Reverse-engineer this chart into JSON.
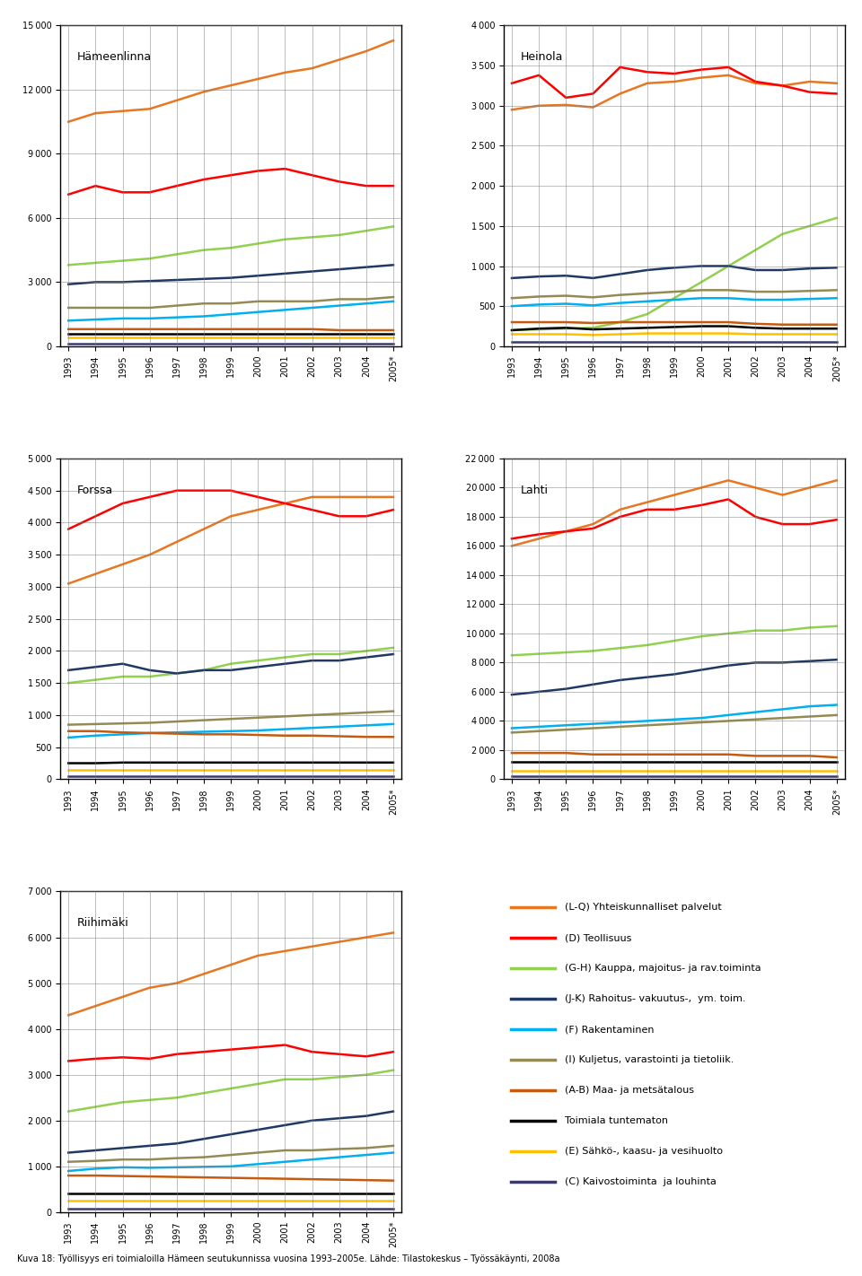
{
  "years": [
    1993,
    1994,
    1995,
    1996,
    1997,
    1998,
    1999,
    2000,
    2001,
    2002,
    2003,
    2004,
    "2005*"
  ],
  "years_numeric": [
    1993,
    1994,
    1995,
    1996,
    1997,
    1998,
    1999,
    2000,
    2001,
    2002,
    2003,
    2004,
    2005
  ],
  "colors": {
    "LQ": "#E87722",
    "D": "#FF0000",
    "GH": "#92D050",
    "JK": "#1F3864",
    "F": "#00B0F0",
    "I": "#948A54",
    "AB": "#C55A11",
    "unknown": "#000000",
    "E": "#FFC000",
    "C": "#3B3B6B"
  },
  "legend_labels": [
    "(L-Q) Yhteiskunnalliset palvelut",
    "(D) Teollisuus",
    "(G-H) Kauppa, majoitus- ja rav.toiminta",
    "(J-K) Rahoitus- vakuutus-,  ym. toim.",
    "(F) Rakentaminen",
    "(I) Kuljetus, varastointi ja tietoliik.",
    "(A-B) Maa- ja metsätalous",
    "Toimiala tuntematon",
    "(E) Sähkö-, kaasu- ja vesihuolto",
    "(C) Kaivostoiminta  ja louhinta"
  ],
  "hameenlinna": {
    "title": "Hämeenlinna",
    "ylim": [
      0,
      15000
    ],
    "yticks": [
      0,
      3000,
      6000,
      9000,
      12000,
      15000
    ],
    "LQ": [
      10500,
      10900,
      11000,
      11100,
      11500,
      11900,
      12200,
      12500,
      12800,
      13000,
      13400,
      13800,
      14300
    ],
    "D": [
      7100,
      7500,
      7200,
      7200,
      7500,
      7800,
      8000,
      8200,
      8300,
      8000,
      7700,
      7500,
      7500
    ],
    "GH": [
      3800,
      3900,
      4000,
      4100,
      4300,
      4500,
      4600,
      4800,
      5000,
      5100,
      5200,
      5400,
      5600
    ],
    "JK": [
      2900,
      3000,
      3000,
      3050,
      3100,
      3150,
      3200,
      3300,
      3400,
      3500,
      3600,
      3700,
      3800
    ],
    "F": [
      1200,
      1250,
      1300,
      1300,
      1350,
      1400,
      1500,
      1600,
      1700,
      1800,
      1900,
      2000,
      2100
    ],
    "I": [
      1800,
      1800,
      1800,
      1800,
      1900,
      2000,
      2000,
      2100,
      2100,
      2100,
      2200,
      2200,
      2300
    ],
    "AB": [
      800,
      800,
      800,
      800,
      800,
      800,
      800,
      800,
      800,
      800,
      750,
      750,
      750
    ],
    "unknown": [
      600,
      600,
      600,
      600,
      600,
      600,
      600,
      600,
      600,
      600,
      600,
      600,
      600
    ],
    "E": [
      400,
      400,
      400,
      400,
      400,
      400,
      400,
      400,
      400,
      400,
      400,
      400,
      400
    ],
    "C": [
      100,
      100,
      100,
      100,
      100,
      100,
      100,
      100,
      100,
      100,
      100,
      100,
      100
    ]
  },
  "heinola": {
    "title": "Heinola",
    "ylim": [
      0,
      4000
    ],
    "yticks": [
      0,
      500,
      1000,
      1500,
      2000,
      2500,
      3000,
      3500,
      4000
    ],
    "LQ": [
      2950,
      3000,
      3010,
      2980,
      3150,
      3280,
      3300,
      3350,
      3380,
      3280,
      3250,
      3300,
      3280
    ],
    "D": [
      3280,
      3380,
      3100,
      3150,
      3480,
      3420,
      3400,
      3450,
      3480,
      3300,
      3250,
      3170,
      3150
    ],
    "GH": [
      200,
      210,
      220,
      230,
      300,
      400,
      600,
      800,
      1000,
      1200,
      1400,
      1500,
      1600
    ],
    "JK": [
      850,
      870,
      880,
      850,
      900,
      950,
      980,
      1000,
      1000,
      950,
      950,
      970,
      980
    ],
    "F": [
      500,
      520,
      530,
      510,
      540,
      560,
      580,
      600,
      600,
      580,
      580,
      590,
      600
    ],
    "I": [
      600,
      620,
      630,
      610,
      640,
      660,
      680,
      700,
      700,
      680,
      680,
      690,
      700
    ],
    "AB": [
      300,
      300,
      300,
      290,
      300,
      300,
      300,
      300,
      300,
      280,
      270,
      270,
      270
    ],
    "unknown": [
      200,
      220,
      230,
      210,
      220,
      230,
      240,
      250,
      250,
      230,
      220,
      220,
      220
    ],
    "E": [
      150,
      150,
      150,
      140,
      150,
      160,
      160,
      160,
      160,
      150,
      150,
      150,
      150
    ],
    "C": [
      50,
      50,
      50,
      50,
      50,
      50,
      50,
      50,
      50,
      50,
      50,
      50,
      50
    ]
  },
  "forssa": {
    "title": "Forssa",
    "ylim": [
      0,
      5000
    ],
    "yticks": [
      0,
      500,
      1000,
      1500,
      2000,
      2500,
      3000,
      3500,
      4000,
      4500,
      5000
    ],
    "LQ": [
      3050,
      3200,
      3350,
      3500,
      3700,
      3900,
      4100,
      4200,
      4300,
      4400,
      4400,
      4400,
      4400
    ],
    "D": [
      3900,
      4100,
      4300,
      4400,
      4500,
      4500,
      4500,
      4400,
      4300,
      4200,
      4100,
      4100,
      4200
    ],
    "GH": [
      1500,
      1550,
      1600,
      1600,
      1650,
      1700,
      1800,
      1850,
      1900,
      1950,
      1950,
      2000,
      2050
    ],
    "JK": [
      1700,
      1750,
      1800,
      1700,
      1650,
      1700,
      1700,
      1750,
      1800,
      1850,
      1850,
      1900,
      1950
    ],
    "F": [
      650,
      680,
      700,
      720,
      730,
      740,
      750,
      760,
      780,
      800,
      820,
      840,
      860
    ],
    "I": [
      850,
      860,
      870,
      880,
      900,
      920,
      940,
      960,
      980,
      1000,
      1020,
      1040,
      1060
    ],
    "AB": [
      750,
      750,
      730,
      720,
      710,
      700,
      700,
      690,
      680,
      680,
      670,
      660,
      660
    ],
    "unknown": [
      250,
      250,
      260,
      260,
      260,
      260,
      260,
      260,
      260,
      260,
      260,
      260,
      260
    ],
    "E": [
      150,
      150,
      150,
      150,
      150,
      150,
      150,
      150,
      150,
      150,
      150,
      150,
      150
    ],
    "C": [
      50,
      50,
      50,
      50,
      50,
      50,
      50,
      50,
      50,
      50,
      50,
      50,
      50
    ]
  },
  "lahti": {
    "title": "Lahti",
    "ylim": [
      0,
      22000
    ],
    "yticks": [
      0,
      2000,
      4000,
      6000,
      8000,
      10000,
      12000,
      14000,
      16000,
      18000,
      20000,
      22000
    ],
    "LQ": [
      16000,
      16500,
      17000,
      17500,
      18500,
      19000,
      19500,
      20000,
      20500,
      20000,
      19500,
      20000,
      20500
    ],
    "D": [
      16500,
      16800,
      17000,
      17200,
      18000,
      18500,
      18500,
      18800,
      19200,
      18000,
      17500,
      17500,
      17800
    ],
    "GH": [
      8500,
      8600,
      8700,
      8800,
      9000,
      9200,
      9500,
      9800,
      10000,
      10200,
      10200,
      10400,
      10500
    ],
    "JK": [
      5800,
      6000,
      6200,
      6500,
      6800,
      7000,
      7200,
      7500,
      7800,
      8000,
      8000,
      8100,
      8200
    ],
    "F": [
      3500,
      3600,
      3700,
      3800,
      3900,
      4000,
      4100,
      4200,
      4400,
      4600,
      4800,
      5000,
      5100
    ],
    "I": [
      3200,
      3300,
      3400,
      3500,
      3600,
      3700,
      3800,
      3900,
      4000,
      4100,
      4200,
      4300,
      4400
    ],
    "AB": [
      1800,
      1800,
      1800,
      1700,
      1700,
      1700,
      1700,
      1700,
      1700,
      1600,
      1600,
      1600,
      1500
    ],
    "unknown": [
      1200,
      1200,
      1200,
      1200,
      1200,
      1200,
      1200,
      1200,
      1200,
      1200,
      1200,
      1200,
      1200
    ],
    "E": [
      600,
      600,
      600,
      600,
      600,
      600,
      600,
      600,
      600,
      600,
      600,
      600,
      600
    ],
    "C": [
      200,
      200,
      200,
      200,
      200,
      200,
      200,
      200,
      200,
      200,
      200,
      200,
      200
    ]
  },
  "riihimaki": {
    "title": "Riihimäki",
    "ylim": [
      0,
      7000
    ],
    "yticks": [
      0,
      1000,
      2000,
      3000,
      4000,
      5000,
      6000,
      7000
    ],
    "LQ": [
      4300,
      4500,
      4700,
      4900,
      5000,
      5200,
      5400,
      5600,
      5700,
      5800,
      5900,
      6000,
      6100
    ],
    "D": [
      3300,
      3350,
      3380,
      3350,
      3450,
      3500,
      3550,
      3600,
      3650,
      3500,
      3450,
      3400,
      3500
    ],
    "GH": [
      2200,
      2300,
      2400,
      2450,
      2500,
      2600,
      2700,
      2800,
      2900,
      2900,
      2950,
      3000,
      3100
    ],
    "JK": [
      1300,
      1350,
      1400,
      1450,
      1500,
      1600,
      1700,
      1800,
      1900,
      2000,
      2050,
      2100,
      2200
    ],
    "F": [
      900,
      950,
      980,
      970,
      980,
      990,
      1000,
      1050,
      1100,
      1150,
      1200,
      1250,
      1300
    ],
    "I": [
      1100,
      1120,
      1150,
      1150,
      1180,
      1200,
      1250,
      1300,
      1350,
      1350,
      1380,
      1400,
      1450
    ],
    "AB": [
      800,
      800,
      790,
      780,
      770,
      760,
      750,
      740,
      730,
      720,
      710,
      700,
      690
    ],
    "unknown": [
      400,
      400,
      400,
      400,
      400,
      400,
      400,
      400,
      400,
      400,
      400,
      400,
      400
    ],
    "E": [
      250,
      250,
      250,
      250,
      250,
      250,
      250,
      250,
      250,
      250,
      250,
      250,
      250
    ],
    "C": [
      80,
      80,
      80,
      80,
      80,
      80,
      80,
      80,
      80,
      80,
      80,
      80,
      80
    ]
  },
  "caption": "Kuva 18: Työllisyys eri toimialoilla Hämeen seutukunnissa vuosina 1993–2005e. Lähde: Tilastokeskus – Työssäkäynti, 2008a"
}
